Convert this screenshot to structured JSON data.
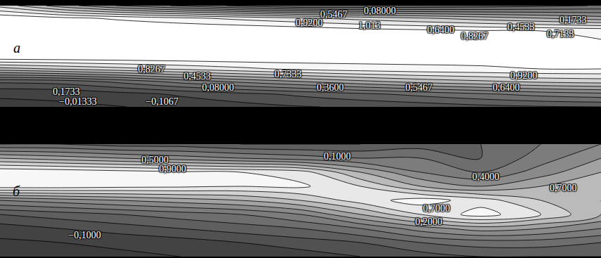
{
  "chart_data": [
    {
      "type": "contour",
      "title": "а",
      "tick_labels": false,
      "xlim": [
        0,
        10
      ],
      "ylim": [
        0,
        1
      ],
      "x": [
        0,
        1,
        2,
        3,
        4,
        5,
        6,
        7,
        8,
        9,
        10
      ],
      "y": [
        0,
        0.125,
        0.25,
        0.375,
        0.5,
        0.625,
        0.75,
        0.875,
        1
      ],
      "z": [
        [
          -0.12,
          -0.12,
          -0.11,
          -0.08,
          -0.05,
          -0.02,
          0.0,
          0.02,
          0.05,
          0.07,
          0.08
        ],
        [
          -0.1,
          -0.09,
          -0.05,
          0.0,
          0.05,
          0.1,
          0.15,
          0.2,
          0.25,
          0.3,
          0.33
        ],
        [
          0.1,
          0.12,
          0.2,
          0.3,
          0.38,
          0.45,
          0.52,
          0.58,
          0.62,
          0.66,
          0.68
        ],
        [
          0.6,
          0.65,
          0.7,
          0.75,
          0.8,
          0.85,
          0.88,
          0.9,
          0.91,
          0.92,
          0.92
        ],
        [
          1.02,
          1.02,
          1.02,
          1.02,
          1.02,
          1.0,
          0.98,
          0.96,
          0.95,
          0.94,
          0.93
        ],
        [
          1.05,
          1.05,
          1.05,
          1.05,
          1.04,
          1.02,
          1.0,
          0.97,
          0.95,
          0.94,
          0.93
        ],
        [
          1.05,
          1.05,
          1.04,
          1.03,
          1.02,
          1.0,
          0.97,
          0.95,
          0.93,
          0.92,
          0.9
        ],
        [
          1.0,
          0.95,
          0.9,
          0.85,
          0.8,
          0.75,
          0.7,
          0.65,
          0.6,
          0.55,
          0.5
        ],
        [
          0.7,
          0.5,
          0.35,
          0.25,
          0.15,
          0.08,
          0.08,
          0.1,
          0.12,
          0.15,
          0.18
        ]
      ],
      "levels": {
        "start": -0.1067,
        "end": 1.013,
        "size": 0.09333
      },
      "annotations": [
        {
          "text": "0,08000",
          "x": 6.32,
          "y": 0.95
        },
        {
          "text": "0,5467",
          "x": 5.56,
          "y": 0.91
        },
        {
          "text": "0,9200",
          "x": 5.15,
          "y": 0.83
        },
        {
          "text": "1,013",
          "x": 6.15,
          "y": 0.8
        },
        {
          "text": "0,6400",
          "x": 7.34,
          "y": 0.76
        },
        {
          "text": "0,8267",
          "x": 7.9,
          "y": 0.7
        },
        {
          "text": "0,4533",
          "x": 8.67,
          "y": 0.79
        },
        {
          "text": "0,7133",
          "x": 9.33,
          "y": 0.72
        },
        {
          "text": "0,1733",
          "x": 9.54,
          "y": 0.86
        },
        {
          "text": "0,1733",
          "x": 1.11,
          "y": 0.15
        },
        {
          "text": "−0,01333",
          "x": 1.29,
          "y": 0.05
        },
        {
          "text": "0,8267",
          "x": 2.52,
          "y": 0.37
        },
        {
          "text": "0,4533",
          "x": 3.28,
          "y": 0.3
        },
        {
          "text": "0,08000",
          "x": 3.63,
          "y": 0.19
        },
        {
          "text": "−0,1067",
          "x": 2.69,
          "y": 0.05
        },
        {
          "text": "0,7333",
          "x": 4.8,
          "y": 0.32
        },
        {
          "text": "0,3600",
          "x": 5.5,
          "y": 0.19
        },
        {
          "text": "0,5467",
          "x": 6.97,
          "y": 0.19
        },
        {
          "text": "0,9200",
          "x": 8.72,
          "y": 0.31
        },
        {
          "text": "0,6400",
          "x": 8.43,
          "y": 0.19
        }
      ]
    },
    {
      "type": "contour",
      "title": "б",
      "tick_labels": false,
      "xlim": [
        0,
        10
      ],
      "ylim": [
        0,
        1
      ],
      "x": [
        0,
        1,
        2,
        3,
        4,
        5,
        6,
        7,
        8,
        9,
        10
      ],
      "y": [
        0,
        0.125,
        0.25,
        0.375,
        0.5,
        0.625,
        0.75,
        0.875,
        1
      ],
      "z": [
        [
          -0.15,
          -0.15,
          -0.12,
          -0.1,
          -0.08,
          -0.05,
          0.0,
          0.05,
          0.1,
          0.1,
          0.1
        ],
        [
          -0.12,
          -0.1,
          -0.08,
          -0.05,
          0.0,
          0.05,
          0.1,
          0.2,
          0.25,
          0.25,
          0.2
        ],
        [
          -0.05,
          0.0,
          0.05,
          0.1,
          0.15,
          0.2,
          0.3,
          0.45,
          0.55,
          0.5,
          0.4
        ],
        [
          0.1,
          0.15,
          0.2,
          0.25,
          0.3,
          0.4,
          0.6,
          0.8,
          0.95,
          0.8,
          0.6
        ],
        [
          0.4,
          0.45,
          0.5,
          0.55,
          0.6,
          0.7,
          0.85,
          0.95,
          0.85,
          0.7,
          0.6
        ],
        [
          0.95,
          0.95,
          0.93,
          0.92,
          0.9,
          0.92,
          0.8,
          0.6,
          0.5,
          0.6,
          0.7
        ],
        [
          1.0,
          0.98,
          0.95,
          0.92,
          0.9,
          0.85,
          0.6,
          0.4,
          0.3,
          0.45,
          0.6
        ],
        [
          0.6,
          0.55,
          0.5,
          0.45,
          0.4,
          0.35,
          0.3,
          0.3,
          0.2,
          0.35,
          0.5
        ],
        [
          0.2,
          0.2,
          0.15,
          0.15,
          0.1,
          0.1,
          0.1,
          0.15,
          0.2,
          0.3,
          0.4
        ]
      ],
      "levels": {
        "start": -0.1,
        "end": 1.0,
        "size": 0.1
      },
      "annotations": [
        {
          "text": "0,5000",
          "x": 2.58,
          "y": 0.86
        },
        {
          "text": "0,9000",
          "x": 2.87,
          "y": 0.78
        },
        {
          "text": "0,1000",
          "x": 5.62,
          "y": 0.89
        },
        {
          "text": "0,4000",
          "x": 8.08,
          "y": 0.71
        },
        {
          "text": "0,7000",
          "x": 9.37,
          "y": 0.61
        },
        {
          "text": "0,7000",
          "x": 7.26,
          "y": 0.43
        },
        {
          "text": "0,2000",
          "x": 7.14,
          "y": 0.31
        },
        {
          "text": "−0,1000",
          "x": 1.41,
          "y": 0.19
        }
      ]
    }
  ]
}
